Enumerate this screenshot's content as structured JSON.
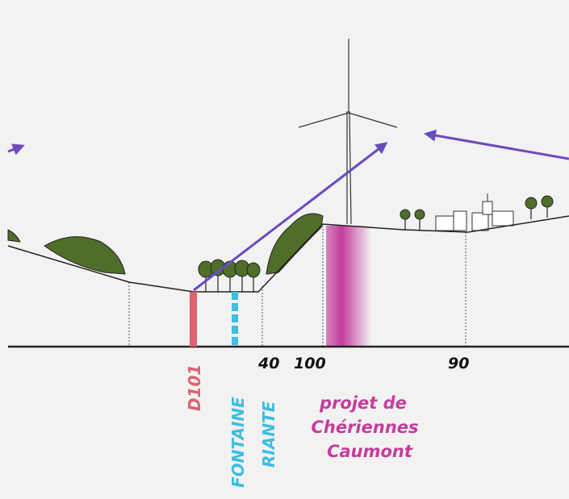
{
  "labels": {
    "road": "D101",
    "stream": [
      "FONTAINE",
      "RIANTE"
    ],
    "distances": [
      "40",
      "100",
      "90"
    ],
    "project": [
      "projet de",
      "Chériennes",
      "Caumont"
    ]
  }
}
